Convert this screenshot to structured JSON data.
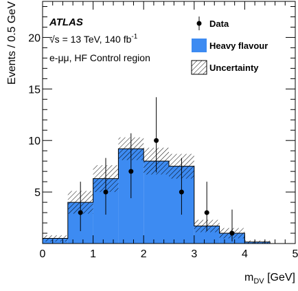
{
  "chart_data": {
    "type": "bar",
    "experiment": "ATLAS",
    "energy_label": "√s = 13 TeV, 140 fb",
    "energy_sup": "-1",
    "channel_label": "e-μμ, HF Control region",
    "xlabel_main": "m",
    "xlabel_sub": "DV",
    "xlabel_unit": " [GeV]",
    "ylabel": "Events / 0.5 GeV",
    "xlim": [
      0,
      5
    ],
    "ylim": [
      0,
      23.5
    ],
    "x_ticks": [
      "0",
      "1",
      "2",
      "3",
      "4",
      "5"
    ],
    "y_ticks": [
      "5",
      "10",
      "15",
      "20"
    ],
    "bin_edges": [
      0,
      0.5,
      1,
      1.5,
      2,
      2.5,
      3,
      3.5,
      4,
      4.5,
      5
    ],
    "series": [
      {
        "name": "Heavy flavour",
        "color": "#3d8bf2",
        "values": [
          0.5,
          4.0,
          6.3,
          9.2,
          8.0,
          7.5,
          1.7,
          1.0,
          0.15,
          0.0
        ],
        "uncertainty": [
          0.3,
          1.1,
          1.3,
          1.1,
          1.3,
          1.2,
          0.6,
          0.5,
          0.15,
          0.0
        ]
      }
    ],
    "data_points": {
      "name": "Data",
      "x": [
        0.75,
        1.25,
        1.75,
        2.25,
        2.75,
        3.25,
        3.75
      ],
      "y": [
        3,
        5,
        7,
        10,
        5,
        3,
        1
      ],
      "err_up": [
        3.0,
        3.3,
        3.7,
        4.2,
        3.3,
        3.0,
        2.3
      ],
      "err_down": [
        1.8,
        2.2,
        2.6,
        3.1,
        2.2,
        1.8,
        0.8
      ]
    },
    "legend": {
      "placement": "top-right",
      "entries": [
        "Data",
        "Heavy flavour",
        "Uncertainty"
      ]
    }
  }
}
